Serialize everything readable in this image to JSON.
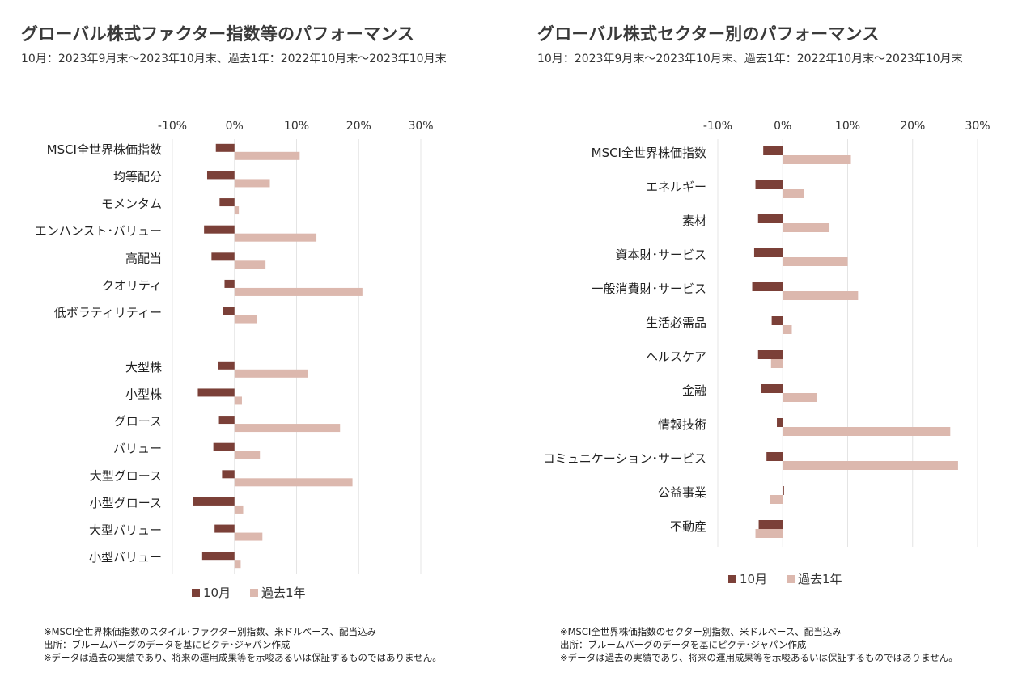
{
  "colors": {
    "month": "#7b4038",
    "year": "#dcb8ae",
    "grid": "#e4e4e4"
  },
  "legend": {
    "month": "10月",
    "year": "過去1年"
  },
  "left": {
    "title": "グローバル株式ファクター指数等のパフォーマンス",
    "subtitle": "10月：2023年9月末～2023年10月末、過去1年：2022年10月末～2023年10月末",
    "notes": [
      "※MSCI全世界株価指数のスタイル･ファクター別指数、米ドルベース、配当込み",
      "出所：ブルームバーグのデータを基にピクテ･ジャパン作成",
      "※データは過去の実績であり、将来の運用成果等を示唆あるいは保証するものではありません。"
    ]
  },
  "right": {
    "title": "グローバル株式セクター別のパフォーマンス",
    "subtitle": "10月：2023年9月末～2023年10月末、過去1年：2022年10月末～2023年10月末",
    "notes": [
      "※MSCI全世界株価指数のセクター別指数、米ドルベース、配当込み",
      "出所：ブルームバーグのデータを基にピクテ･ジャパン作成",
      "※データは過去の実績であり、将来の運用成果等を示唆あるいは保証するものではありません。"
    ]
  },
  "chart_data": [
    {
      "type": "bar",
      "orientation": "horizontal",
      "title": "グローバル株式ファクター指数等のパフォーマンス",
      "xlim": [
        -0.1,
        0.3
      ],
      "ticks": [
        "-10%",
        "0%",
        "10%",
        "20%",
        "30%"
      ],
      "tick_values": [
        -0.1,
        0,
        0.1,
        0.2,
        0.3
      ],
      "axis_position": "top",
      "grid": true,
      "legend_position": "bottom",
      "categories": [
        "MSCI全世界株価指数",
        "均等配分",
        "モメンタム",
        "エンハンスト･バリュー",
        "高配当",
        "クオリティ",
        "低ボラティリティー",
        "",
        "大型株",
        "小型株",
        "グロース",
        "バリュー",
        "大型グロース",
        "小型グロース",
        "大型バリュー",
        "小型バリュー"
      ],
      "series": [
        {
          "name": "10月",
          "values": [
            -0.03,
            -0.044,
            -0.024,
            -0.049,
            -0.037,
            -0.016,
            -0.018,
            null,
            -0.027,
            -0.059,
            -0.025,
            -0.034,
            -0.02,
            -0.067,
            -0.032,
            -0.052
          ]
        },
        {
          "name": "過去1年",
          "values": [
            0.105,
            0.057,
            0.007,
            0.132,
            0.05,
            0.206,
            0.036,
            null,
            0.118,
            0.012,
            0.17,
            0.041,
            0.19,
            0.014,
            0.045,
            0.01
          ]
        }
      ]
    },
    {
      "type": "bar",
      "orientation": "horizontal",
      "title": "グローバル株式セクター別のパフォーマンス",
      "xlim": [
        -0.1,
        0.3
      ],
      "ticks": [
        "-10%",
        "0%",
        "10%",
        "20%",
        "30%"
      ],
      "tick_values": [
        -0.1,
        0,
        0.1,
        0.2,
        0.3
      ],
      "axis_position": "top",
      "grid": true,
      "legend_position": "bottom",
      "categories": [
        "MSCI全世界株価指数",
        "エネルギー",
        "素材",
        "資本財･サービス",
        "一般消費財･サービス",
        "生活必需品",
        "ヘルスケア",
        "金融",
        "情報技術",
        "コミュニケーション･サービス",
        "公益事業",
        "不動産"
      ],
      "series": [
        {
          "name": "10月",
          "values": [
            -0.03,
            -0.042,
            -0.038,
            -0.044,
            -0.047,
            -0.017,
            -0.038,
            -0.033,
            -0.009,
            -0.025,
            0.002,
            -0.037
          ]
        },
        {
          "name": "過去1年",
          "values": [
            0.105,
            0.033,
            0.072,
            0.1,
            0.116,
            0.014,
            -0.018,
            0.052,
            0.258,
            0.27,
            -0.02,
            -0.042
          ]
        }
      ]
    }
  ]
}
